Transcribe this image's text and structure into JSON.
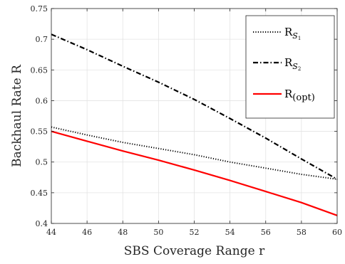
{
  "chart_data": {
    "type": "line",
    "xlabel": "SBS Coverage Range r",
    "ylabel": "Backhaul Rate R",
    "xlim": [
      44,
      60
    ],
    "ylim": [
      0.4,
      0.75
    ],
    "xticks": [
      "44",
      "46",
      "48",
      "50",
      "52",
      "54",
      "56",
      "58",
      "60"
    ],
    "yticks": [
      "0.4",
      "0.45",
      "0.5",
      "0.55",
      "0.6",
      "0.65",
      "0.7",
      "0.75"
    ],
    "grid": true,
    "legend_position": "top-right",
    "series": [
      {
        "name": "R_{S_1}",
        "name_main": "R",
        "name_sub": "S",
        "name_subsub": "1",
        "style": "dotted",
        "color": "#000000",
        "x": [
          44,
          46,
          48,
          50,
          52,
          54,
          56,
          58,
          60
        ],
        "y": [
          0.557,
          0.544,
          0.532,
          0.522,
          0.512,
          0.5,
          0.49,
          0.48,
          0.472
        ]
      },
      {
        "name": "R_{S_2}",
        "name_main": "R",
        "name_sub": "S",
        "name_subsub": "2",
        "style": "dashdot",
        "color": "#000000",
        "x": [
          44,
          46,
          48,
          50,
          52,
          54,
          56,
          58,
          60
        ],
        "y": [
          0.708,
          0.683,
          0.656,
          0.63,
          0.602,
          0.571,
          0.539,
          0.505,
          0.472
        ]
      },
      {
        "name": "R_(opt)",
        "name_main": "R",
        "name_sub": "(opt)",
        "name_subsub": "",
        "style": "solid",
        "color": "#ff0000",
        "x": [
          44,
          46,
          48,
          50,
          52,
          54,
          56,
          58,
          60
        ],
        "y": [
          0.55,
          0.534,
          0.518,
          0.503,
          0.487,
          0.47,
          0.452,
          0.434,
          0.413
        ]
      }
    ]
  }
}
